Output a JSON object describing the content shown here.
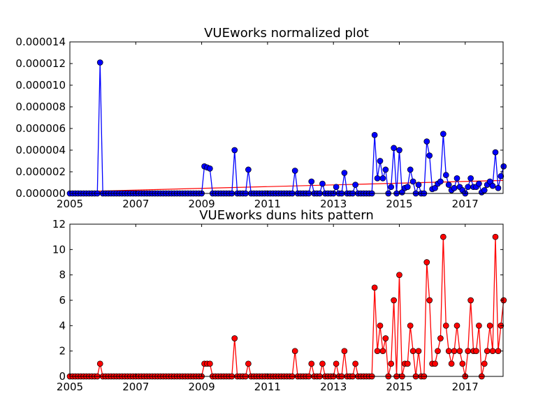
{
  "chart_data": [
    {
      "type": "line",
      "title": "VUEworks normalized plot",
      "xlabel": "",
      "ylabel": "",
      "xlim": [
        2005.0,
        2018.15
      ],
      "ylim": [
        0,
        1.4e-05
      ],
      "x_ticks": [
        {
          "value": 2005,
          "label": "2005"
        },
        {
          "value": 2007,
          "label": "2007"
        },
        {
          "value": 2009,
          "label": "2009"
        },
        {
          "value": 2011,
          "label": "2011"
        },
        {
          "value": 2013,
          "label": "2013"
        },
        {
          "value": 2015,
          "label": "2015"
        },
        {
          "value": 2017,
          "label": "2017"
        }
      ],
      "y_ticks": [
        {
          "value": 0,
          "label": "0.000000"
        },
        {
          "value": 2e-06,
          "label": "0.000002"
        },
        {
          "value": 4e-06,
          "label": "0.000004"
        },
        {
          "value": 6e-06,
          "label": "0.000006"
        },
        {
          "value": 8e-06,
          "label": "0.000008"
        },
        {
          "value": 1e-05,
          "label": "0.000010"
        },
        {
          "value": 1.2e-05,
          "label": "0.000012"
        },
        {
          "value": 1.4e-05,
          "label": "0.000014"
        }
      ],
      "grid": false,
      "series_color": "#0000ff",
      "trend_color": "#ff0000",
      "trend_line": {
        "x": [
          2005.0,
          2018.15
        ],
        "y": [
          1.5e-07,
          1.2e-06
        ]
      },
      "points": [
        [
          2005.92,
          1.21e-05
        ],
        [
          2009.08,
          2.5e-06
        ],
        [
          2009.17,
          2.4e-06
        ],
        [
          2009.25,
          2.3e-06
        ],
        [
          2010.0,
          4e-06
        ],
        [
          2010.42,
          2.2e-06
        ],
        [
          2011.83,
          2.1e-06
        ],
        [
          2012.33,
          1.1e-06
        ],
        [
          2012.67,
          9e-07
        ],
        [
          2013.08,
          6e-07
        ],
        [
          2013.33,
          1.9e-06
        ],
        [
          2013.67,
          8e-07
        ],
        [
          2014.25,
          5.4e-06
        ],
        [
          2014.33,
          1.4e-06
        ],
        [
          2014.42,
          3e-06
        ],
        [
          2014.5,
          1.4e-06
        ],
        [
          2014.58,
          2.2e-06
        ],
        [
          2014.75,
          6e-07
        ],
        [
          2014.83,
          4.2e-06
        ],
        [
          2015.0,
          4e-06
        ],
        [
          2015.08,
          1e-07
        ],
        [
          2015.17,
          5e-07
        ],
        [
          2015.25,
          6e-07
        ],
        [
          2015.33,
          2.2e-06
        ],
        [
          2015.42,
          1.1e-06
        ],
        [
          2015.58,
          8e-07
        ],
        [
          2015.83,
          4.8e-06
        ],
        [
          2015.92,
          3.5e-06
        ],
        [
          2016.0,
          4e-07
        ],
        [
          2016.08,
          5e-07
        ],
        [
          2016.17,
          9e-07
        ],
        [
          2016.25,
          1.1e-06
        ],
        [
          2016.33,
          5.5e-06
        ],
        [
          2016.42,
          1.7e-06
        ],
        [
          2016.5,
          8e-07
        ],
        [
          2016.58,
          3e-07
        ],
        [
          2016.67,
          5e-07
        ],
        [
          2016.75,
          1.4e-06
        ],
        [
          2016.83,
          6e-07
        ],
        [
          2016.92,
          3e-07
        ],
        [
          2017.08,
          6e-07
        ],
        [
          2017.17,
          1.4e-06
        ],
        [
          2017.25,
          6e-07
        ],
        [
          2017.33,
          6e-07
        ],
        [
          2017.42,
          9e-07
        ],
        [
          2017.5,
          1e-07
        ],
        [
          2017.58,
          3e-07
        ],
        [
          2017.67,
          8e-07
        ],
        [
          2017.75,
          1.1e-06
        ],
        [
          2017.83,
          7e-07
        ],
        [
          2017.92,
          3.8e-06
        ],
        [
          2018.0,
          5e-07
        ],
        [
          2018.08,
          1.6e-06
        ],
        [
          2018.15,
          2.5e-06
        ]
      ]
    },
    {
      "type": "line",
      "title": "VUEworks duns hits pattern",
      "xlabel": "",
      "ylabel": "",
      "xlim": [
        2005.0,
        2018.15
      ],
      "ylim": [
        0,
        12
      ],
      "x_ticks": [
        {
          "value": 2005,
          "label": "2005"
        },
        {
          "value": 2007,
          "label": "2007"
        },
        {
          "value": 2009,
          "label": "2009"
        },
        {
          "value": 2011,
          "label": "2011"
        },
        {
          "value": 2013,
          "label": "2013"
        },
        {
          "value": 2015,
          "label": "2015"
        },
        {
          "value": 2017,
          "label": "2017"
        }
      ],
      "y_ticks": [
        {
          "value": 0,
          "label": "0"
        },
        {
          "value": 2,
          "label": "2"
        },
        {
          "value": 4,
          "label": "4"
        },
        {
          "value": 6,
          "label": "6"
        },
        {
          "value": 8,
          "label": "8"
        },
        {
          "value": 10,
          "label": "10"
        },
        {
          "value": 12,
          "label": "12"
        }
      ],
      "grid": false,
      "series_color": "#ff0000",
      "points": [
        [
          2005.92,
          1
        ],
        [
          2009.08,
          1
        ],
        [
          2009.17,
          1
        ],
        [
          2009.25,
          1
        ],
        [
          2010.0,
          3
        ],
        [
          2010.42,
          1
        ],
        [
          2011.83,
          2
        ],
        [
          2012.33,
          1
        ],
        [
          2012.67,
          1
        ],
        [
          2013.08,
          1
        ],
        [
          2013.33,
          2
        ],
        [
          2013.67,
          1
        ],
        [
          2014.25,
          7
        ],
        [
          2014.33,
          2
        ],
        [
          2014.42,
          4
        ],
        [
          2014.5,
          2
        ],
        [
          2014.58,
          3
        ],
        [
          2014.75,
          1
        ],
        [
          2014.83,
          6
        ],
        [
          2015.0,
          8
        ],
        [
          2015.17,
          1
        ],
        [
          2015.25,
          1
        ],
        [
          2015.33,
          4
        ],
        [
          2015.42,
          2
        ],
        [
          2015.58,
          2
        ],
        [
          2015.83,
          9
        ],
        [
          2015.92,
          6
        ],
        [
          2016.0,
          1
        ],
        [
          2016.08,
          1
        ],
        [
          2016.17,
          2
        ],
        [
          2016.25,
          3
        ],
        [
          2016.33,
          11
        ],
        [
          2016.42,
          4
        ],
        [
          2016.5,
          2
        ],
        [
          2016.58,
          1
        ],
        [
          2016.67,
          2
        ],
        [
          2016.75,
          4
        ],
        [
          2016.83,
          2
        ],
        [
          2016.92,
          1
        ],
        [
          2017.08,
          2
        ],
        [
          2017.17,
          6
        ],
        [
          2017.25,
          2
        ],
        [
          2017.33,
          2
        ],
        [
          2017.42,
          4
        ],
        [
          2017.58,
          1
        ],
        [
          2017.67,
          2
        ],
        [
          2017.75,
          4
        ],
        [
          2017.83,
          2
        ],
        [
          2017.92,
          11
        ],
        [
          2018.0,
          2
        ],
        [
          2018.08,
          4
        ],
        [
          2018.15,
          6
        ]
      ]
    }
  ]
}
